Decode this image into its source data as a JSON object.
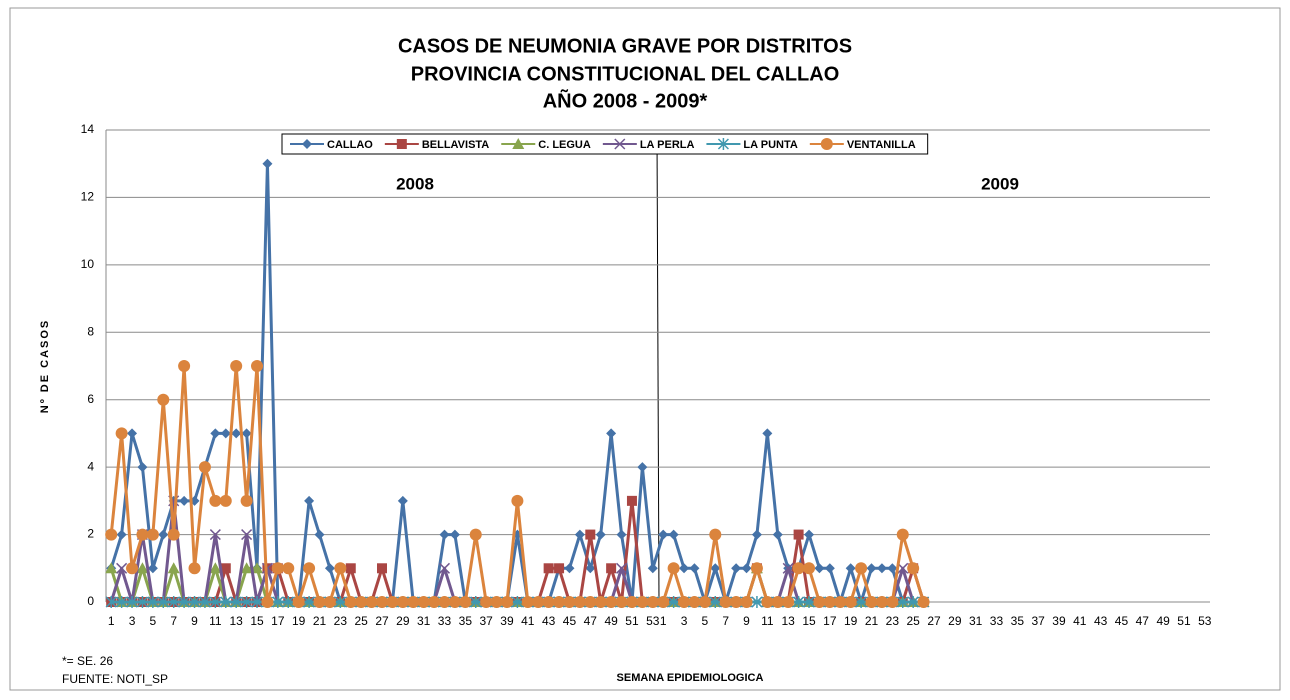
{
  "chart_data": {
    "type": "line",
    "title": [
      "CASOS DE NEUMONIA GRAVE POR DISTRITOS",
      "PROVINCIA CONSTITUCIONAL DEL CALLAO",
      "AÑO 2008 - 2009*"
    ],
    "ylabel": "Nº DE CASOS",
    "xlabel": "SEMANA EPIDEMIOLOGICA",
    "annotations": [
      "2008",
      "2009"
    ],
    "footnotes": [
      "*= SE.  26",
      "FUENTE: NOTI_SP"
    ],
    "ylim": [
      0,
      14
    ],
    "yticks": [
      0,
      2,
      4,
      6,
      8,
      10,
      12,
      14
    ],
    "grid": true,
    "legend": "top",
    "categories": [
      "1",
      null,
      "3",
      null,
      "5",
      null,
      "7",
      null,
      "9",
      null,
      "11",
      null,
      "13",
      null,
      "15",
      null,
      "17",
      null,
      "19",
      null,
      "21",
      null,
      "23",
      null,
      "25",
      null,
      "27",
      null,
      "29",
      null,
      "31",
      null,
      "33",
      null,
      "35",
      null,
      "37",
      null,
      "39",
      null,
      "41",
      null,
      "43",
      null,
      "45",
      null,
      "47",
      null,
      "49",
      null,
      "51",
      null,
      "53",
      "1",
      null,
      "3",
      null,
      "5",
      null,
      "7",
      null,
      "9",
      null,
      "11",
      null,
      "13",
      null,
      "15",
      null,
      "17",
      null,
      "19",
      null,
      "21",
      null,
      "23",
      null,
      "25",
      null,
      "27",
      null,
      "29",
      null,
      "31",
      null,
      "33",
      null,
      "35",
      null,
      "37",
      null,
      "39",
      null,
      "41",
      null,
      "43",
      null,
      "45",
      null,
      "47",
      null,
      "49",
      null,
      "51",
      null,
      "53"
    ],
    "series": [
      {
        "name": "CALLAO",
        "color": "#4572a7",
        "marker": "diamond",
        "values": [
          1,
          2,
          5,
          4,
          1,
          2,
          3,
          3,
          3,
          4,
          5,
          5,
          5,
          5,
          1,
          13,
          0,
          0,
          0,
          3,
          2,
          1,
          0,
          0,
          0,
          0,
          0,
          0,
          3,
          0,
          0,
          0,
          2,
          2,
          0,
          0,
          0,
          0,
          0,
          2,
          0,
          0,
          0,
          1,
          1,
          2,
          1,
          2,
          5,
          2,
          0,
          4,
          1,
          2,
          2,
          1,
          1,
          0,
          1,
          0,
          1,
          1,
          2,
          5,
          2,
          1,
          1,
          2,
          1,
          1,
          0,
          1,
          0,
          1,
          1,
          1,
          0,
          0,
          0,
          null,
          null,
          null,
          null,
          null,
          null,
          null,
          null,
          null,
          null,
          null,
          null,
          null,
          null,
          null,
          null,
          null,
          null,
          null,
          null,
          null,
          null,
          null,
          null,
          null,
          null,
          null
        ]
      },
      {
        "name": "BELLAVISTA",
        "color": "#aa4643",
        "marker": "square",
        "values": [
          0,
          0,
          0,
          0,
          0,
          0,
          0,
          0,
          0,
          0,
          0,
          1,
          0,
          0,
          0,
          1,
          1,
          0,
          0,
          0,
          0,
          0,
          0,
          1,
          0,
          0,
          1,
          0,
          0,
          0,
          0,
          0,
          0,
          0,
          0,
          0,
          0,
          0,
          0,
          0,
          0,
          0,
          1,
          1,
          0,
          0,
          2,
          0,
          1,
          0,
          3,
          0,
          0,
          0,
          0,
          0,
          0,
          0,
          0,
          0,
          0,
          0,
          1,
          0,
          0,
          0,
          2,
          0,
          0,
          0,
          0,
          0,
          0,
          0,
          0,
          0,
          0,
          1,
          0,
          null,
          null,
          null,
          null,
          null,
          null,
          null,
          null,
          null,
          null,
          null,
          null,
          null,
          null,
          null,
          null,
          null,
          null,
          null,
          null,
          null,
          null,
          null,
          null,
          null,
          null,
          null
        ]
      },
      {
        "name": "C. LEGUA",
        "color": "#89a54e",
        "marker": "triangle",
        "values": [
          1,
          0,
          0,
          1,
          0,
          0,
          1,
          0,
          0,
          0,
          1,
          0,
          0,
          1,
          1,
          0,
          0,
          0,
          0,
          0,
          0,
          0,
          0,
          0,
          0,
          0,
          0,
          0,
          0,
          0,
          0,
          0,
          0,
          0,
          0,
          0,
          0,
          0,
          0,
          0,
          0,
          0,
          0,
          0,
          0,
          0,
          0,
          0,
          0,
          0,
          0,
          0,
          0,
          0,
          0,
          0,
          0,
          0,
          0,
          0,
          0,
          0,
          1,
          0,
          0,
          0,
          0,
          0,
          0,
          0,
          0,
          0,
          0,
          0,
          0,
          0,
          0,
          0,
          0,
          null,
          null,
          null,
          null,
          null,
          null,
          null,
          null,
          null,
          null,
          null,
          null,
          null,
          null,
          null,
          null,
          null,
          null,
          null,
          null,
          null,
          null,
          null,
          null,
          null,
          null,
          null
        ]
      },
      {
        "name": "LA PERLA",
        "color": "#71588f",
        "marker": "x",
        "values": [
          0,
          1,
          0,
          2,
          0,
          0,
          3,
          0,
          0,
          0,
          2,
          0,
          0,
          2,
          0,
          1,
          0,
          0,
          0,
          0,
          0,
          0,
          0,
          0,
          0,
          0,
          0,
          0,
          0,
          0,
          0,
          0,
          1,
          0,
          0,
          0,
          0,
          0,
          0,
          0,
          0,
          0,
          0,
          0,
          0,
          0,
          0,
          0,
          0,
          1,
          0,
          0,
          0,
          0,
          0,
          0,
          0,
          0,
          0,
          0,
          0,
          0,
          0,
          0,
          0,
          1,
          0,
          0,
          0,
          0,
          0,
          0,
          0,
          0,
          0,
          0,
          1,
          0,
          0,
          null,
          null,
          null,
          null,
          null,
          null,
          null,
          null,
          null,
          null,
          null,
          null,
          null,
          null,
          null,
          null,
          null,
          null,
          null,
          null,
          null,
          null,
          null,
          null,
          null,
          null,
          null
        ]
      },
      {
        "name": "LA PUNTA",
        "color": "#4198af",
        "marker": "star",
        "values": [
          0,
          0,
          0,
          0,
          0,
          0,
          0,
          0,
          0,
          0,
          0,
          0,
          0,
          0,
          0,
          0,
          0,
          0,
          0,
          0,
          0,
          0,
          0,
          0,
          0,
          0,
          0,
          0,
          0,
          0,
          0,
          0,
          0,
          0,
          0,
          0,
          0,
          0,
          0,
          0,
          0,
          0,
          0,
          0,
          0,
          0,
          0,
          0,
          0,
          0,
          0,
          0,
          0,
          0,
          0,
          0,
          0,
          0,
          0,
          0,
          0,
          0,
          0,
          0,
          0,
          0,
          0,
          0,
          0,
          0,
          0,
          0,
          0,
          0,
          0,
          0,
          0,
          0,
          0,
          null,
          null,
          null,
          null,
          null,
          null,
          null,
          null,
          null,
          null,
          null,
          null,
          null,
          null,
          null,
          null,
          null,
          null,
          null,
          null,
          null,
          null,
          null,
          null,
          null,
          null,
          null
        ]
      },
      {
        "name": "VENTANILLA",
        "color": "#db843d",
        "marker": "circle",
        "values": [
          2,
          5,
          1,
          2,
          2,
          6,
          2,
          7,
          1,
          4,
          3,
          3,
          7,
          3,
          7,
          0,
          1,
          1,
          0,
          1,
          0,
          0,
          1,
          0,
          0,
          0,
          0,
          0,
          0,
          0,
          0,
          0,
          0,
          0,
          0,
          2,
          0,
          0,
          0,
          3,
          0,
          0,
          0,
          0,
          0,
          0,
          0,
          0,
          0,
          0,
          0,
          0,
          0,
          0,
          1,
          0,
          0,
          0,
          2,
          0,
          0,
          0,
          1,
          0,
          0,
          0,
          1,
          1,
          0,
          0,
          0,
          0,
          1,
          0,
          0,
          0,
          2,
          1,
          0,
          null,
          null,
          null,
          null,
          null,
          null,
          null,
          null,
          null,
          null,
          null,
          null,
          null,
          null,
          null,
          null,
          null,
          null,
          null,
          null,
          null,
          null,
          null,
          null,
          null,
          null,
          null
        ]
      }
    ]
  }
}
